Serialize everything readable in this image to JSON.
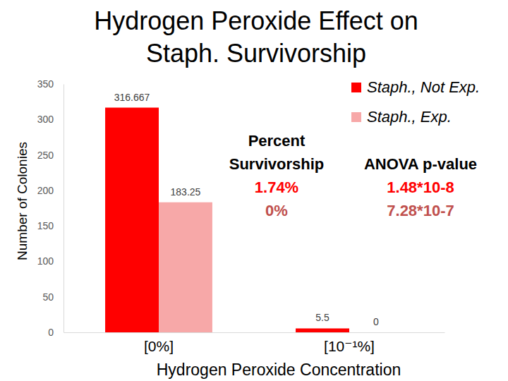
{
  "chart_data": {
    "type": "bar",
    "title": "Hydrogen Peroxide Effect on Staph. Survivorship",
    "x_label": "Hydrogen Peroxide Concentration",
    "y_label": "Number of Colonies",
    "categories": [
      "[0%]",
      "[10⁻¹%]"
    ],
    "series": [
      {
        "name": "Staph., Not Exp.",
        "color": "#ff0000",
        "values": [
          316.667,
          5.5
        ]
      },
      {
        "name": "Staph., Exp.",
        "color": "#f7a8a8",
        "values": [
          183.25,
          0
        ]
      }
    ],
    "ylim": [
      0,
      350
    ],
    "yticks": [
      0,
      50,
      100,
      150,
      200,
      250,
      300,
      350
    ],
    "grid": false,
    "legend": "top-right",
    "data_labels": true,
    "annotations": {
      "columns": [
        "Percent Survivorship",
        "ANOVA p-value"
      ],
      "rows": [
        [
          "1.74%",
          "1.48*10-8"
        ],
        [
          "0%",
          "7.28*10-7"
        ]
      ]
    }
  }
}
